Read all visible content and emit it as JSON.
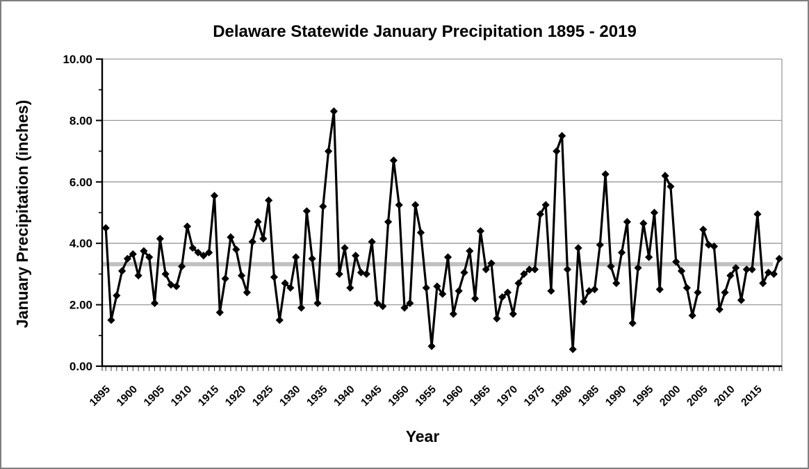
{
  "window": {
    "background": "#ffffff",
    "frame_border_color": "#7f7f7f"
  },
  "chart_data": {
    "type": "line",
    "title": "Delaware Statewide January Precipitation 1895 - 2019",
    "xlabel": "Year",
    "ylabel": "January Precipitation (inches)",
    "x_start": 1895,
    "x_end": 2019,
    "x_step": 1,
    "ylim": [
      0,
      10
    ],
    "grid": true,
    "legend_position": "none",
    "y_tick_labels": [
      "0.00",
      "2.00",
      "4.00",
      "6.00",
      "8.00",
      "10.00"
    ],
    "y_tick_values": [
      0,
      2,
      4,
      6,
      8,
      10
    ],
    "y_minor_tick_values": [
      1,
      3,
      5,
      7,
      9
    ],
    "x_tick_label_years": [
      1895,
      1900,
      1905,
      1910,
      1915,
      1920,
      1925,
      1930,
      1935,
      1940,
      1945,
      1950,
      1955,
      1960,
      1965,
      1970,
      1975,
      1980,
      1985,
      1990,
      1995,
      2000,
      2005,
      2010,
      2015
    ],
    "series": [
      {
        "name": "January precipitation (inches)",
        "marker": "diamond",
        "line_color": "#000000",
        "marker_color": "#000000",
        "values": [
          4.5,
          1.5,
          2.3,
          3.1,
          3.5,
          3.65,
          2.95,
          3.75,
          3.55,
          2.05,
          4.15,
          3.0,
          2.65,
          2.6,
          3.25,
          4.55,
          3.85,
          3.7,
          3.6,
          3.7,
          5.55,
          1.75,
          2.85,
          4.2,
          3.8,
          2.95,
          2.4,
          4.05,
          4.7,
          4.15,
          5.4,
          2.9,
          1.5,
          2.7,
          2.55,
          3.55,
          1.9,
          5.05,
          3.5,
          2.05,
          5.2,
          7.0,
          8.3,
          3.0,
          3.85,
          2.55,
          3.6,
          3.05,
          3.0,
          4.05,
          2.05,
          1.95,
          4.7,
          6.7,
          5.25,
          1.9,
          2.05,
          5.25,
          4.35,
          2.55,
          0.65,
          2.6,
          2.35,
          3.55,
          1.7,
          2.45,
          3.05,
          3.75,
          2.2,
          4.4,
          3.15,
          3.35,
          1.55,
          2.25,
          2.4,
          1.7,
          2.7,
          3.0,
          3.15,
          3.15,
          4.95,
          5.25,
          2.45,
          7.0,
          7.5,
          3.15,
          0.55,
          3.85,
          2.1,
          2.45,
          2.5,
          3.95,
          6.25,
          3.25,
          2.7,
          3.7,
          4.7,
          1.4,
          3.2,
          4.65,
          3.55,
          5.0,
          2.5,
          6.2,
          5.85,
          3.4,
          3.1,
          2.55,
          1.65,
          2.4,
          4.45,
          3.95,
          3.9,
          1.85,
          2.4,
          2.95,
          3.2,
          2.15,
          3.15,
          3.15,
          4.95,
          2.7,
          3.05,
          3.0,
          3.5
        ]
      }
    ],
    "mean_line": {
      "value": 3.32,
      "color": "#c0c0c0"
    },
    "colors": {
      "gridline": "#9a9a9a",
      "axis": "#000000",
      "data": "#000000"
    }
  }
}
